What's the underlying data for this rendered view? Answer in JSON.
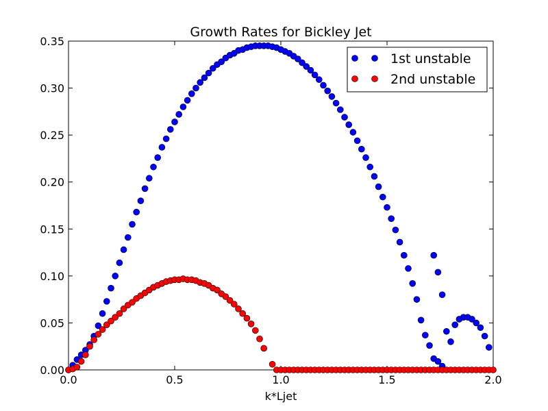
{
  "chart_data": {
    "type": "scatter",
    "title": "Growth Rates for Bickley Jet",
    "xlabel": "k*Ljet",
    "ylabel": "",
    "xlim": [
      0.0,
      2.0
    ],
    "ylim": [
      0.0,
      0.35
    ],
    "x_ticks": [
      "0.0",
      "0.5",
      "1.0",
      "1.5",
      "2.0"
    ],
    "y_ticks": [
      "0.00",
      "0.05",
      "0.10",
      "0.15",
      "0.20",
      "0.25",
      "0.30",
      "0.35"
    ],
    "grid": false,
    "legend": {
      "placement": "top-right"
    },
    "colors": {
      "series1": "#0000ff",
      "series2": "#ff0000"
    },
    "series": [
      {
        "name": "1st unstable",
        "points": [
          [
            0.0,
            0.0
          ],
          [
            0.02,
            0.005
          ],
          [
            0.04,
            0.011
          ],
          [
            0.06,
            0.016
          ],
          [
            0.08,
            0.021
          ],
          [
            0.1,
            0.027
          ],
          [
            0.12,
            0.036
          ],
          [
            0.14,
            0.047
          ],
          [
            0.16,
            0.06
          ],
          [
            0.18,
            0.073
          ],
          [
            0.2,
            0.087
          ],
          [
            0.22,
            0.1
          ],
          [
            0.24,
            0.114
          ],
          [
            0.26,
            0.128
          ],
          [
            0.28,
            0.141
          ],
          [
            0.3,
            0.155
          ],
          [
            0.32,
            0.168
          ],
          [
            0.34,
            0.18
          ],
          [
            0.36,
            0.193
          ],
          [
            0.38,
            0.204
          ],
          [
            0.4,
            0.216
          ],
          [
            0.42,
            0.226
          ],
          [
            0.44,
            0.237
          ],
          [
            0.46,
            0.246
          ],
          [
            0.48,
            0.256
          ],
          [
            0.5,
            0.264
          ],
          [
            0.52,
            0.272
          ],
          [
            0.54,
            0.28
          ],
          [
            0.56,
            0.287
          ],
          [
            0.58,
            0.294
          ],
          [
            0.6,
            0.3
          ],
          [
            0.62,
            0.306
          ],
          [
            0.64,
            0.311
          ],
          [
            0.66,
            0.316
          ],
          [
            0.68,
            0.321
          ],
          [
            0.7,
            0.325
          ],
          [
            0.72,
            0.328
          ],
          [
            0.74,
            0.332
          ],
          [
            0.76,
            0.335
          ],
          [
            0.78,
            0.337
          ],
          [
            0.8,
            0.34
          ],
          [
            0.82,
            0.341
          ],
          [
            0.84,
            0.343
          ],
          [
            0.86,
            0.344
          ],
          [
            0.88,
            0.345
          ],
          [
            0.9,
            0.345
          ],
          [
            0.92,
            0.345
          ],
          [
            0.94,
            0.345
          ],
          [
            0.96,
            0.344
          ],
          [
            0.98,
            0.343
          ],
          [
            1.0,
            0.341
          ],
          [
            1.02,
            0.339
          ],
          [
            1.04,
            0.337
          ],
          [
            1.06,
            0.334
          ],
          [
            1.08,
            0.331
          ],
          [
            1.1,
            0.327
          ],
          [
            1.12,
            0.323
          ],
          [
            1.14,
            0.319
          ],
          [
            1.16,
            0.314
          ],
          [
            1.18,
            0.309
          ],
          [
            1.2,
            0.303
          ],
          [
            1.22,
            0.297
          ],
          [
            1.24,
            0.291
          ],
          [
            1.26,
            0.284
          ],
          [
            1.28,
            0.277
          ],
          [
            1.3,
            0.269
          ],
          [
            1.32,
            0.261
          ],
          [
            1.34,
            0.253
          ],
          [
            1.36,
            0.244
          ],
          [
            1.38,
            0.235
          ],
          [
            1.4,
            0.226
          ],
          [
            1.42,
            0.216
          ],
          [
            1.44,
            0.206
          ],
          [
            1.46,
            0.195
          ],
          [
            1.48,
            0.184
          ],
          [
            1.5,
            0.173
          ],
          [
            1.52,
            0.161
          ],
          [
            1.54,
            0.149
          ],
          [
            1.56,
            0.136
          ],
          [
            1.58,
            0.122
          ],
          [
            1.6,
            0.108
          ],
          [
            1.62,
            0.092
          ],
          [
            1.64,
            0.075
          ],
          [
            1.66,
            0.053
          ],
          [
            1.68,
            0.037
          ],
          [
            1.7,
            0.026
          ],
          [
            1.72,
            0.012
          ],
          [
            1.74,
            0.009
          ],
          [
            1.76,
            0.004
          ],
          [
            1.72,
            0.122
          ],
          [
            1.74,
            0.104
          ],
          [
            1.76,
            0.08
          ],
          [
            1.78,
            0.041
          ],
          [
            1.8,
            0.03
          ],
          [
            1.82,
            0.048
          ],
          [
            1.84,
            0.054
          ],
          [
            1.86,
            0.056
          ],
          [
            1.88,
            0.056
          ],
          [
            1.9,
            0.054
          ],
          [
            1.92,
            0.05
          ],
          [
            1.94,
            0.045
          ],
          [
            1.96,
            0.036
          ],
          [
            1.98,
            0.024
          ]
        ]
      },
      {
        "name": "2nd unstable",
        "points": [
          [
            0.0,
            0.0
          ],
          [
            0.02,
            0.001
          ],
          [
            0.04,
            0.003
          ],
          [
            0.06,
            0.009
          ],
          [
            0.08,
            0.016
          ],
          [
            0.1,
            0.025
          ],
          [
            0.12,
            0.032
          ],
          [
            0.14,
            0.038
          ],
          [
            0.16,
            0.043
          ],
          [
            0.18,
            0.048
          ],
          [
            0.2,
            0.052
          ],
          [
            0.22,
            0.056
          ],
          [
            0.24,
            0.06
          ],
          [
            0.26,
            0.065
          ],
          [
            0.28,
            0.069
          ],
          [
            0.3,
            0.072
          ],
          [
            0.32,
            0.076
          ],
          [
            0.34,
            0.079
          ],
          [
            0.36,
            0.082
          ],
          [
            0.38,
            0.085
          ],
          [
            0.4,
            0.088
          ],
          [
            0.42,
            0.09
          ],
          [
            0.44,
            0.092
          ],
          [
            0.46,
            0.094
          ],
          [
            0.48,
            0.095
          ],
          [
            0.5,
            0.096
          ],
          [
            0.52,
            0.096
          ],
          [
            0.54,
            0.097
          ],
          [
            0.56,
            0.096
          ],
          [
            0.58,
            0.096
          ],
          [
            0.6,
            0.095
          ],
          [
            0.62,
            0.093
          ],
          [
            0.64,
            0.092
          ],
          [
            0.66,
            0.09
          ],
          [
            0.68,
            0.087
          ],
          [
            0.7,
            0.085
          ],
          [
            0.72,
            0.081
          ],
          [
            0.74,
            0.078
          ],
          [
            0.76,
            0.074
          ],
          [
            0.78,
            0.07
          ],
          [
            0.8,
            0.065
          ],
          [
            0.82,
            0.06
          ],
          [
            0.84,
            0.055
          ],
          [
            0.86,
            0.049
          ],
          [
            0.88,
            0.042
          ],
          [
            0.9,
            0.033
          ],
          [
            0.92,
            0.023
          ],
          [
            0.96,
            0.006
          ],
          [
            0.98,
            0.0
          ],
          [
            1.0,
            0.0
          ],
          [
            1.02,
            0.0
          ],
          [
            1.04,
            0.0
          ],
          [
            1.06,
            0.0
          ],
          [
            1.08,
            0.0
          ],
          [
            1.1,
            0.0
          ],
          [
            1.12,
            0.0
          ],
          [
            1.14,
            0.0
          ],
          [
            1.16,
            0.0
          ],
          [
            1.18,
            0.0
          ],
          [
            1.2,
            0.0
          ],
          [
            1.22,
            0.0
          ],
          [
            1.24,
            0.0
          ],
          [
            1.26,
            0.0
          ],
          [
            1.28,
            0.0
          ],
          [
            1.3,
            0.0
          ],
          [
            1.32,
            0.0
          ],
          [
            1.34,
            0.0
          ],
          [
            1.36,
            0.0
          ],
          [
            1.38,
            0.0
          ],
          [
            1.4,
            0.0
          ],
          [
            1.42,
            0.0
          ],
          [
            1.44,
            0.0
          ],
          [
            1.46,
            0.0
          ],
          [
            1.48,
            0.0
          ],
          [
            1.5,
            0.0
          ],
          [
            1.52,
            0.0
          ],
          [
            1.54,
            0.0
          ],
          [
            1.56,
            0.0
          ],
          [
            1.58,
            0.0
          ],
          [
            1.6,
            0.0
          ],
          [
            1.62,
            0.0
          ],
          [
            1.64,
            0.0
          ],
          [
            1.66,
            0.0
          ],
          [
            1.68,
            0.0
          ],
          [
            1.7,
            0.0
          ],
          [
            1.72,
            0.0
          ],
          [
            1.74,
            0.0
          ],
          [
            1.76,
            0.0
          ],
          [
            1.78,
            0.0
          ],
          [
            1.8,
            0.0
          ],
          [
            1.82,
            0.0
          ],
          [
            1.84,
            0.0
          ],
          [
            1.86,
            0.0
          ],
          [
            1.88,
            0.0
          ],
          [
            1.9,
            0.0
          ],
          [
            1.92,
            0.0
          ],
          [
            1.94,
            0.0
          ],
          [
            1.96,
            0.0
          ],
          [
            1.98,
            0.0
          ],
          [
            2.0,
            0.0
          ]
        ]
      }
    ]
  }
}
